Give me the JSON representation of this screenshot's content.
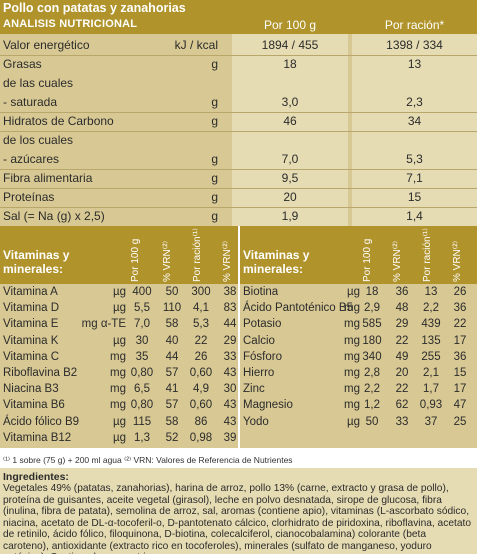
{
  "header": {
    "title": "Pollo con patatas y zanahorias",
    "subtitle": "ANALISIS NUTRICIONAL",
    "per100": "Por 100 g",
    "perServing": "Por ración*"
  },
  "nutrients": [
    {
      "label": "Valor energético",
      "unit": "kJ / kcal",
      "per100": "1894 / 455",
      "serving": "1398 / 334"
    },
    {
      "label": "Grasas",
      "unit": "g",
      "per100": "18",
      "serving": "13"
    },
    {
      "label": "de las cuales",
      "unit": "",
      "per100": "",
      "serving": ""
    },
    {
      "label": "- saturada",
      "unit": "g",
      "per100": "3,0",
      "serving": "2,3"
    },
    {
      "label": "Hidratos de Carbono",
      "unit": "g",
      "per100": "46",
      "serving": "34"
    },
    {
      "label": "de los cuales",
      "unit": "",
      "per100": "",
      "serving": ""
    },
    {
      "label": "- azúcares",
      "unit": "g",
      "per100": "7,0",
      "serving": "5,3"
    },
    {
      "label": "Fibra alimentaria",
      "unit": "g",
      "per100": "9,5",
      "serving": "7,1"
    },
    {
      "label": "Proteínas",
      "unit": "g",
      "per100": "20",
      "serving": "15"
    },
    {
      "label": "Sal (= Na (g) x 2,5)",
      "unit": "g",
      "per100": "1,9",
      "serving": "1,4"
    }
  ],
  "vitamins_header": {
    "title1": "Vitaminas y",
    "title2": "minerales:",
    "col1": "Por 100 g",
    "col2": "% VRN⁽²⁾",
    "col3": "Por ración⁽¹⁾",
    "col4": "% VRN⁽²⁾"
  },
  "vitamins_left": [
    {
      "name": "Vitamina A",
      "unit": "µg",
      "v1": "400",
      "v2": "50",
      "v3": "300",
      "v4": "38"
    },
    {
      "name": "Vitamina D",
      "unit": "µg",
      "v1": "5,5",
      "v2": "110",
      "v3": "4,1",
      "v4": "83"
    },
    {
      "name": "Vitamina E",
      "unit": "mg α-TE",
      "v1": "7,0",
      "v2": "58",
      "v3": "5,3",
      "v4": "44"
    },
    {
      "name": "Vitamina K",
      "unit": "µg",
      "v1": "30",
      "v2": "40",
      "v3": "22",
      "v4": "29"
    },
    {
      "name": "Vitamina C",
      "unit": "mg",
      "v1": "35",
      "v2": "44",
      "v3": "26",
      "v4": "33"
    },
    {
      "name": "Riboflavina B2",
      "unit": "mg",
      "v1": "0,80",
      "v2": "57",
      "v3": "0,60",
      "v4": "43"
    },
    {
      "name": "Niacina B3",
      "unit": "mg",
      "v1": "6,5",
      "v2": "41",
      "v3": "4,9",
      "v4": "30"
    },
    {
      "name": "Vitamina B6",
      "unit": "mg",
      "v1": "0,80",
      "v2": "57",
      "v3": "0,60",
      "v4": "43"
    },
    {
      "name": "Ácido fólico B9",
      "unit": "µg",
      "v1": "115",
      "v2": "58",
      "v3": "86",
      "v4": "43"
    },
    {
      "name": "Vitamina B12",
      "unit": "µg",
      "v1": "1,3",
      "v2": "52",
      "v3": "0,98",
      "v4": "39"
    }
  ],
  "vitamins_right": [
    {
      "name": "Biotina",
      "unit": "µg",
      "v1": "18",
      "v2": "36",
      "v3": "13",
      "v4": "26"
    },
    {
      "name": "Ácido Pantoténico B5",
      "unit": "mg",
      "v1": "2,9",
      "v2": "48",
      "v3": "2,2",
      "v4": "36"
    },
    {
      "name": "Potasio",
      "unit": "mg",
      "v1": "585",
      "v2": "29",
      "v3": "439",
      "v4": "22"
    },
    {
      "name": "Calcio",
      "unit": "mg",
      "v1": "180",
      "v2": "22",
      "v3": "135",
      "v4": "17"
    },
    {
      "name": "Fósforo",
      "unit": "mg",
      "v1": "340",
      "v2": "49",
      "v3": "255",
      "v4": "36"
    },
    {
      "name": "Hierro",
      "unit": "mg",
      "v1": "2,8",
      "v2": "20",
      "v3": "2,1",
      "v4": "15"
    },
    {
      "name": "Zinc",
      "unit": "mg",
      "v1": "2,2",
      "v2": "22",
      "v3": "1,7",
      "v4": "17"
    },
    {
      "name": "Magnesio",
      "unit": "mg",
      "v1": "1,2",
      "v2": "62",
      "v3": "0,93",
      "v4": "47"
    },
    {
      "name": "Yodo",
      "unit": "µg",
      "v1": "50",
      "v2": "33",
      "v3": "37",
      "v4": "25"
    }
  ],
  "footnote": "⁽¹⁾ 1 sobre (75 g) + 200 ml agua  ⁽²⁾ VRN: Valores de Referencia de Nutrientes",
  "ingredients": {
    "heading": "Ingredientes:",
    "text": "Vegetales 49% (patatas, zanahorias), harina de arroz, pollo 13% (carne, extracto y grasa de pollo), proteína de guisantes, aceite vegetal (girasol), leche en polvo desnatada, sirope de glucosa, fibra (inulina, fibra de patata), semolina de arroz, sal, aromas (contiene apio), vitaminas (L-ascorbato sódico, niacina, acetato de DL-α-tocoferil-o, D-pantotenato cálcico, clorhidrato de piridoxina, riboflavina, acetato de retinilo, ácido fólico, filoquinona, D-biotina, colecalciferol, cianocobalamina) colorante (beta caroteno), antioxidante (extracto rico en tocoferoles), minerales (sulfato de manganeso, yoduro potásico). Contiene huevos y trigo."
  },
  "colors": {
    "band": "#b0932a",
    "dark": "#d8c994",
    "light": "#e6dcb3"
  }
}
